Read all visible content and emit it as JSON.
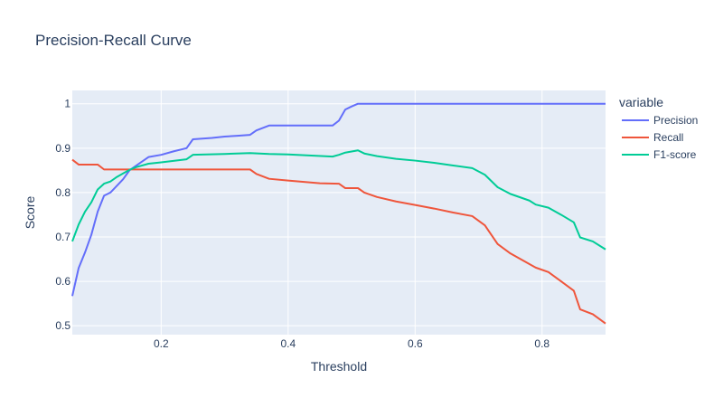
{
  "chart_data": {
    "type": "line",
    "title": "Precision-Recall Curve",
    "xlabel": "Threshold",
    "ylabel": "Score",
    "xlim": [
      0.06,
      0.9
    ],
    "ylim": [
      0.48,
      1.03
    ],
    "xticks": [
      0.2,
      0.4,
      0.6,
      0.8
    ],
    "xtick_labels": [
      "0.2",
      "0.4",
      "0.6",
      "0.8"
    ],
    "yticks": [
      0.5,
      0.6,
      0.7,
      0.8,
      0.9,
      1.0
    ],
    "ytick_labels": [
      "0.5",
      "0.6",
      "0.7",
      "0.8",
      "0.9",
      "1"
    ],
    "grid": true,
    "legend_title": "variable",
    "legend_position": "right",
    "colors": {
      "plot_background": "#e5ecf6",
      "grid": "#ffffff",
      "text": "#2a3f5f"
    },
    "series": [
      {
        "name": "Precision",
        "color": "#636efa",
        "x": [
          0.06,
          0.07,
          0.08,
          0.09,
          0.1,
          0.11,
          0.12,
          0.13,
          0.14,
          0.15,
          0.16,
          0.17,
          0.18,
          0.2,
          0.22,
          0.24,
          0.25,
          0.28,
          0.3,
          0.32,
          0.34,
          0.35,
          0.37,
          0.4,
          0.42,
          0.44,
          0.47,
          0.48,
          0.49,
          0.5,
          0.51,
          0.55,
          0.6,
          0.65,
          0.7,
          0.75,
          0.8,
          0.85,
          0.9
        ],
        "y": [
          0.567,
          0.63,
          0.665,
          0.705,
          0.757,
          0.793,
          0.8,
          0.815,
          0.83,
          0.85,
          0.86,
          0.87,
          0.88,
          0.885,
          0.893,
          0.9,
          0.92,
          0.923,
          0.926,
          0.928,
          0.93,
          0.94,
          0.951,
          0.951,
          0.951,
          0.951,
          0.951,
          0.962,
          0.987,
          0.994,
          1.0,
          1.0,
          1.0,
          1.0,
          1.0,
          1.0,
          1.0,
          1.0,
          1.0
        ]
      },
      {
        "name": "Recall",
        "color": "#ef553b",
        "x": [
          0.06,
          0.07,
          0.08,
          0.1,
          0.11,
          0.2,
          0.3,
          0.34,
          0.35,
          0.37,
          0.4,
          0.45,
          0.48,
          0.49,
          0.51,
          0.52,
          0.54,
          0.57,
          0.6,
          0.63,
          0.66,
          0.69,
          0.71,
          0.73,
          0.75,
          0.77,
          0.79,
          0.81,
          0.83,
          0.85,
          0.86,
          0.88,
          0.9
        ],
        "y": [
          0.874,
          0.863,
          0.863,
          0.863,
          0.852,
          0.852,
          0.852,
          0.852,
          0.842,
          0.831,
          0.827,
          0.821,
          0.82,
          0.81,
          0.81,
          0.8,
          0.79,
          0.78,
          0.772,
          0.764,
          0.755,
          0.747,
          0.726,
          0.684,
          0.663,
          0.647,
          0.631,
          0.621,
          0.6,
          0.579,
          0.537,
          0.526,
          0.505
        ]
      },
      {
        "name": "F1-score",
        "color": "#00cc96",
        "x": [
          0.06,
          0.07,
          0.08,
          0.09,
          0.1,
          0.11,
          0.12,
          0.13,
          0.14,
          0.15,
          0.16,
          0.18,
          0.2,
          0.24,
          0.25,
          0.3,
          0.34,
          0.37,
          0.4,
          0.47,
          0.48,
          0.49,
          0.51,
          0.52,
          0.54,
          0.57,
          0.6,
          0.63,
          0.66,
          0.69,
          0.71,
          0.73,
          0.75,
          0.78,
          0.79,
          0.81,
          0.83,
          0.85,
          0.86,
          0.88,
          0.9
        ],
        "y": [
          0.69,
          0.728,
          0.757,
          0.778,
          0.807,
          0.82,
          0.825,
          0.835,
          0.843,
          0.851,
          0.857,
          0.865,
          0.868,
          0.875,
          0.885,
          0.887,
          0.889,
          0.887,
          0.886,
          0.881,
          0.885,
          0.89,
          0.895,
          0.888,
          0.882,
          0.876,
          0.872,
          0.867,
          0.861,
          0.855,
          0.84,
          0.812,
          0.797,
          0.782,
          0.773,
          0.766,
          0.75,
          0.733,
          0.699,
          0.69,
          0.672
        ]
      }
    ]
  }
}
